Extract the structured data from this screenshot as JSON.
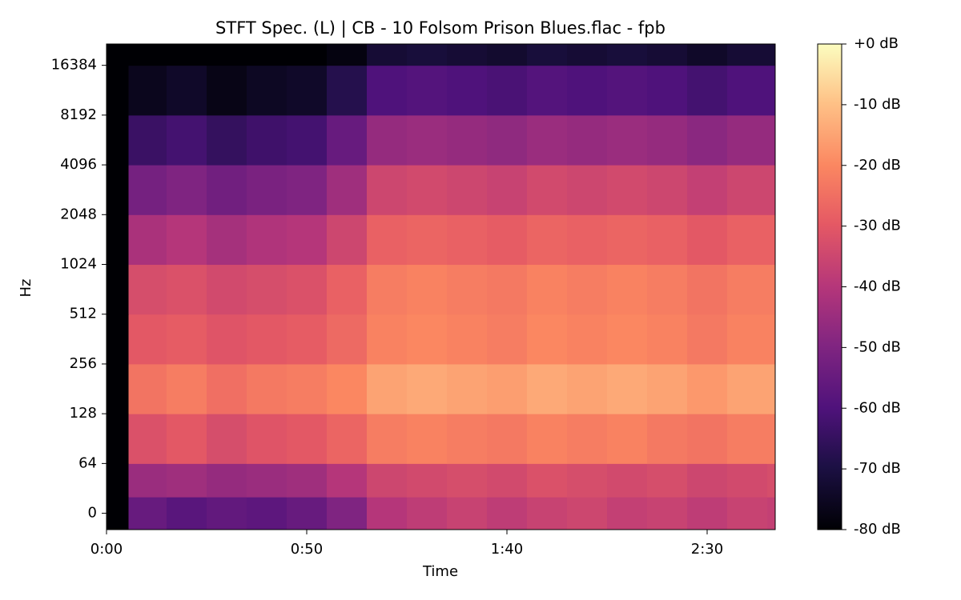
{
  "chart_data": {
    "type": "heatmap",
    "title": "STFT Spec. (L) | CB - 10 Folsom Prison Blues.flac - fpb",
    "xlabel": "Time",
    "ylabel": "Hz",
    "xlim": [
      0,
      167
    ],
    "xticks": [
      {
        "value": 0,
        "label": "0:00"
      },
      {
        "value": 50,
        "label": "0:50"
      },
      {
        "value": 100,
        "label": "1:40"
      },
      {
        "value": 150,
        "label": "2:30"
      }
    ],
    "ylim": [
      -21,
      22050
    ],
    "yscale": "symlog",
    "linthresh": 64,
    "yticks": [
      0,
      64,
      128,
      256,
      512,
      1024,
      2048,
      4096,
      8192,
      16384
    ],
    "x_edges": [
      0,
      5.5,
      15,
      25,
      35,
      45,
      55,
      65,
      75,
      85,
      95,
      105,
      115,
      125,
      135,
      145,
      155,
      165,
      167
    ],
    "y_edges": [
      -21,
      21,
      64,
      128,
      256,
      512,
      1024,
      2048,
      4096,
      8192,
      16384,
      22050
    ],
    "z": [
      [
        -80,
        -55,
        -58,
        -56,
        -57,
        -55,
        -50,
        -40,
        -38,
        -36,
        -38,
        -36,
        -35,
        -37,
        -36,
        -38,
        -36,
        -37
      ],
      [
        -80,
        -45,
        -44,
        -46,
        -45,
        -44,
        -40,
        -35,
        -34,
        -33,
        -34,
        -32,
        -33,
        -34,
        -33,
        -35,
        -34,
        -33
      ],
      [
        -80,
        -32,
        -30,
        -33,
        -31,
        -30,
        -27,
        -22,
        -21,
        -22,
        -23,
        -21,
        -22,
        -21,
        -23,
        -24,
        -22,
        -22
      ],
      [
        -80,
        -24,
        -22,
        -25,
        -23,
        -22,
        -20,
        -15,
        -14,
        -15,
        -16,
        -14,
        -15,
        -14,
        -15,
        -17,
        -15,
        -15
      ],
      [
        -80,
        -30,
        -29,
        -31,
        -30,
        -29,
        -26,
        -21,
        -20,
        -21,
        -22,
        -20,
        -21,
        -20,
        -21,
        -23,
        -21,
        -21
      ],
      [
        -80,
        -33,
        -32,
        -34,
        -33,
        -32,
        -28,
        -22,
        -21,
        -22,
        -23,
        -21,
        -22,
        -21,
        -22,
        -24,
        -22,
        -22
      ],
      [
        -80,
        -42,
        -40,
        -43,
        -41,
        -40,
        -35,
        -28,
        -27,
        -28,
        -29,
        -27,
        -28,
        -27,
        -28,
        -30,
        -28,
        -28
      ],
      [
        -80,
        -52,
        -50,
        -53,
        -51,
        -50,
        -44,
        -35,
        -34,
        -35,
        -36,
        -34,
        -35,
        -34,
        -35,
        -37,
        -35,
        -35
      ],
      [
        -80,
        -64,
        -62,
        -65,
        -63,
        -62,
        -55,
        -46,
        -45,
        -46,
        -47,
        -45,
        -46,
        -45,
        -46,
        -48,
        -46,
        -46
      ],
      [
        -80,
        -76,
        -74,
        -77,
        -75,
        -74,
        -68,
        -60,
        -59,
        -60,
        -61,
        -59,
        -60,
        -59,
        -60,
        -62,
        -60,
        -60
      ],
      [
        -80,
        -80,
        -80,
        -80,
        -80,
        -80,
        -78,
        -72,
        -71,
        -72,
        -73,
        -71,
        -72,
        -71,
        -72,
        -74,
        -72,
        -72
      ]
    ],
    "colormap": "magma",
    "clim": [
      -80,
      0
    ],
    "cticks": [
      {
        "value": 0,
        "label": "+0 dB"
      },
      {
        "value": -10,
        "label": "-10 dB"
      },
      {
        "value": -20,
        "label": "-20 dB"
      },
      {
        "value": -30,
        "label": "-30 dB"
      },
      {
        "value": -40,
        "label": "-40 dB"
      },
      {
        "value": -50,
        "label": "-50 dB"
      },
      {
        "value": -60,
        "label": "-60 dB"
      },
      {
        "value": -70,
        "label": "-70 dB"
      },
      {
        "value": -80,
        "label": "-80 dB"
      }
    ]
  }
}
